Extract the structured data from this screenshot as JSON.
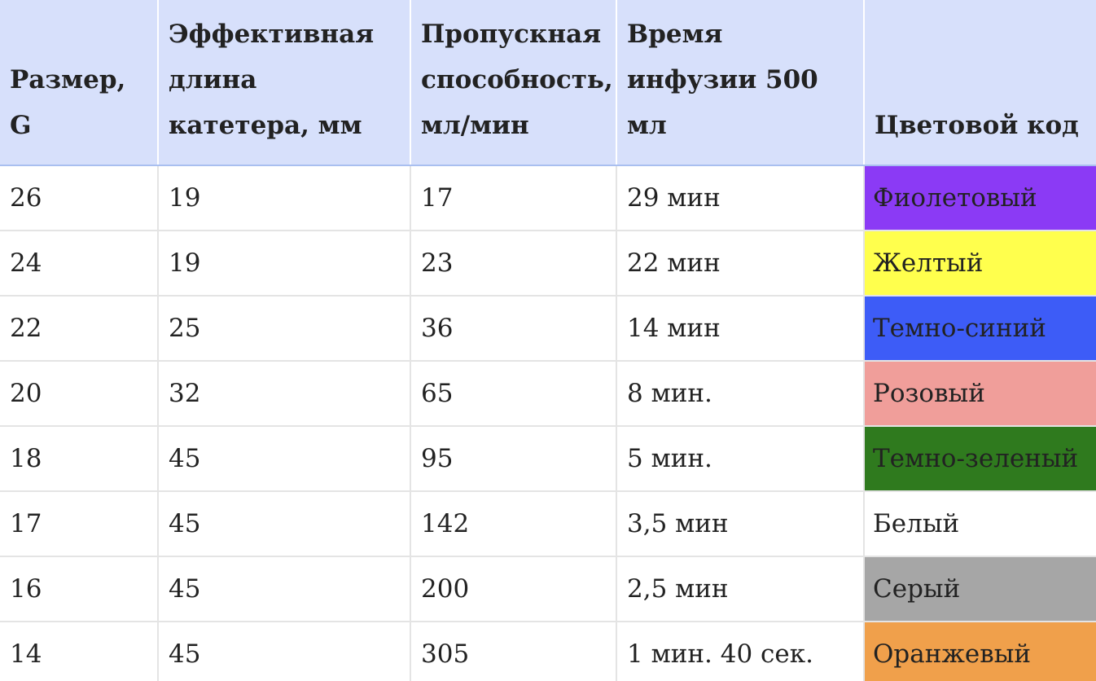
{
  "table": {
    "headers": [
      "Размер, G",
      "Эффективная длина катетера, мм",
      "Пропускная способность, мл/мин",
      "Время инфузии 500 мл",
      "Цветовой код"
    ],
    "rows": [
      {
        "size": "26",
        "length": "19",
        "flow": "17",
        "time": "29 мин",
        "color_name": "Фиолетовый",
        "color_hex": "#8b3af5"
      },
      {
        "size": "24",
        "length": "19",
        "flow": "23",
        "time": "22 мин",
        "color_name": "Желтый",
        "color_hex": "#ffff4d"
      },
      {
        "size": "22",
        "length": "25",
        "flow": "36",
        "time": "14 мин",
        "color_name": "Темно-синий",
        "color_hex": "#3d5cf7"
      },
      {
        "size": "20",
        "length": "32",
        "flow": "65",
        "time": "8 мин.",
        "color_name": "Розовый",
        "color_hex": "#f09e9a"
      },
      {
        "size": "18",
        "length": "45",
        "flow": "95",
        "time": "5 мин.",
        "color_name": "Темно-зеленый",
        "color_hex": "#2f7a1e"
      },
      {
        "size": "17",
        "length": "45",
        "flow": "142",
        "time": "3,5 мин",
        "color_name": "Белый",
        "color_hex": "#ffffff"
      },
      {
        "size": "16",
        "length": "45",
        "flow": "200",
        "time": "2,5 мин",
        "color_name": "Серый",
        "color_hex": "#a6a6a6"
      },
      {
        "size": "14",
        "length": "45",
        "flow": "305",
        "time": "1 мин. 40 сек.",
        "color_name": "Оранжевый",
        "color_hex": "#f0a04b"
      }
    ]
  }
}
